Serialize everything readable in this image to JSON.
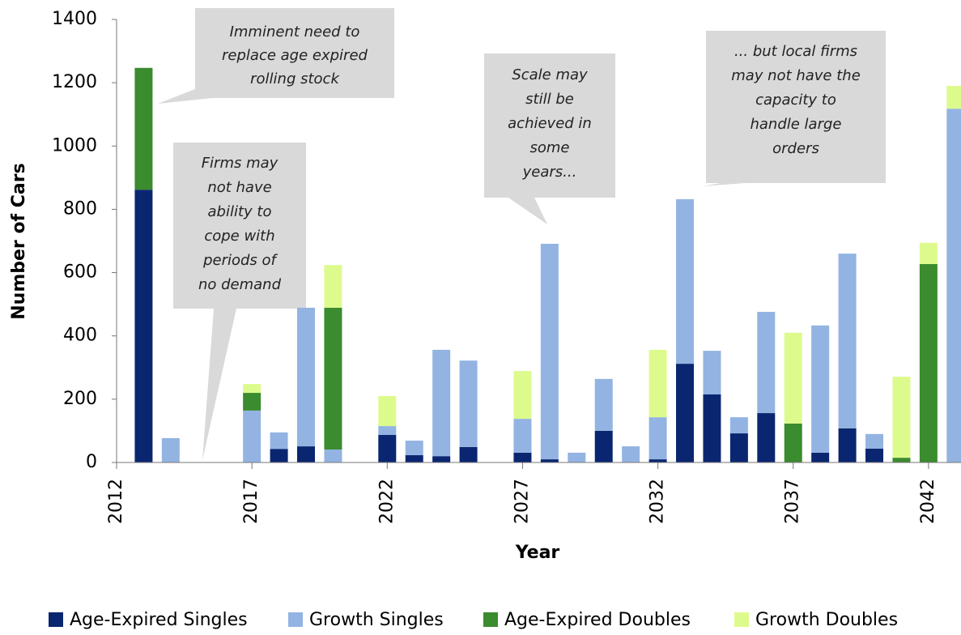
{
  "chart_data": {
    "type": "stacked_bar",
    "x_label": "Year",
    "y_label": "Number of Cars",
    "x": [
      2013,
      2014,
      2015,
      2016,
      2017,
      2018,
      2019,
      2020,
      2021,
      2022,
      2023,
      2024,
      2025,
      2026,
      2027,
      2028,
      2029,
      2030,
      2031,
      2032,
      2033,
      2034,
      2035,
      2036,
      2037,
      2038,
      2039,
      2040,
      2041,
      2042,
      2043
    ],
    "series": [
      {
        "name": "Age-Expired Singles",
        "color": "#0b2670",
        "values": [
          862,
          0,
          0,
          0,
          0,
          43,
          51,
          0,
          0,
          87,
          23,
          20,
          49,
          0,
          31,
          10,
          0,
          100,
          0,
          10,
          312,
          215,
          92,
          156,
          0,
          31,
          108,
          44,
          0,
          0,
          0
        ]
      },
      {
        "name": "Growth Singles",
        "color": "#93b4e2",
        "values": [
          0,
          77,
          0,
          0,
          164,
          52,
          438,
          41,
          0,
          28,
          46,
          336,
          273,
          0,
          107,
          681,
          31,
          164,
          51,
          133,
          520,
          138,
          51,
          320,
          0,
          402,
          552,
          46,
          0,
          0,
          1118
        ]
      },
      {
        "name": "Age-Expired Doubles",
        "color": "#3b8b2f",
        "values": [
          385,
          0,
          0,
          0,
          56,
          0,
          0,
          448,
          0,
          0,
          0,
          0,
          0,
          0,
          0,
          0,
          0,
          0,
          0,
          0,
          0,
          0,
          0,
          0,
          123,
          0,
          0,
          0,
          15,
          627,
          0
        ]
      },
      {
        "name": "Growth Doubles",
        "color": "#ddfb8d",
        "values": [
          0,
          0,
          0,
          0,
          28,
          0,
          0,
          135,
          0,
          95,
          0,
          0,
          0,
          0,
          151,
          0,
          0,
          0,
          0,
          213,
          0,
          0,
          0,
          0,
          287,
          0,
          0,
          0,
          256,
          67,
          72
        ]
      }
    ],
    "xlim": [
      2012,
      2043.2
    ],
    "xticks": [
      2012,
      2017,
      2022,
      2027,
      2032,
      2037,
      2042
    ],
    "ylim": [
      0,
      1400
    ],
    "yticks": [
      0,
      200,
      400,
      600,
      800,
      1000,
      1200,
      1400
    ],
    "legend": "bottom",
    "annotations": [
      {
        "lines": [
          "Imminent  need to",
          "replace age expired",
          "rolling stock"
        ]
      },
      {
        "lines": [
          "Firms may",
          "not have",
          "ability to",
          "cope with",
          "periods of",
          "no demand"
        ]
      },
      {
        "lines": [
          "Scale may",
          "still be",
          "achieved in",
          "some",
          "years..."
        ]
      },
      {
        "lines": [
          "... but local firms",
          "may not have the",
          "capacity to",
          "handle large",
          "orders"
        ]
      }
    ]
  }
}
